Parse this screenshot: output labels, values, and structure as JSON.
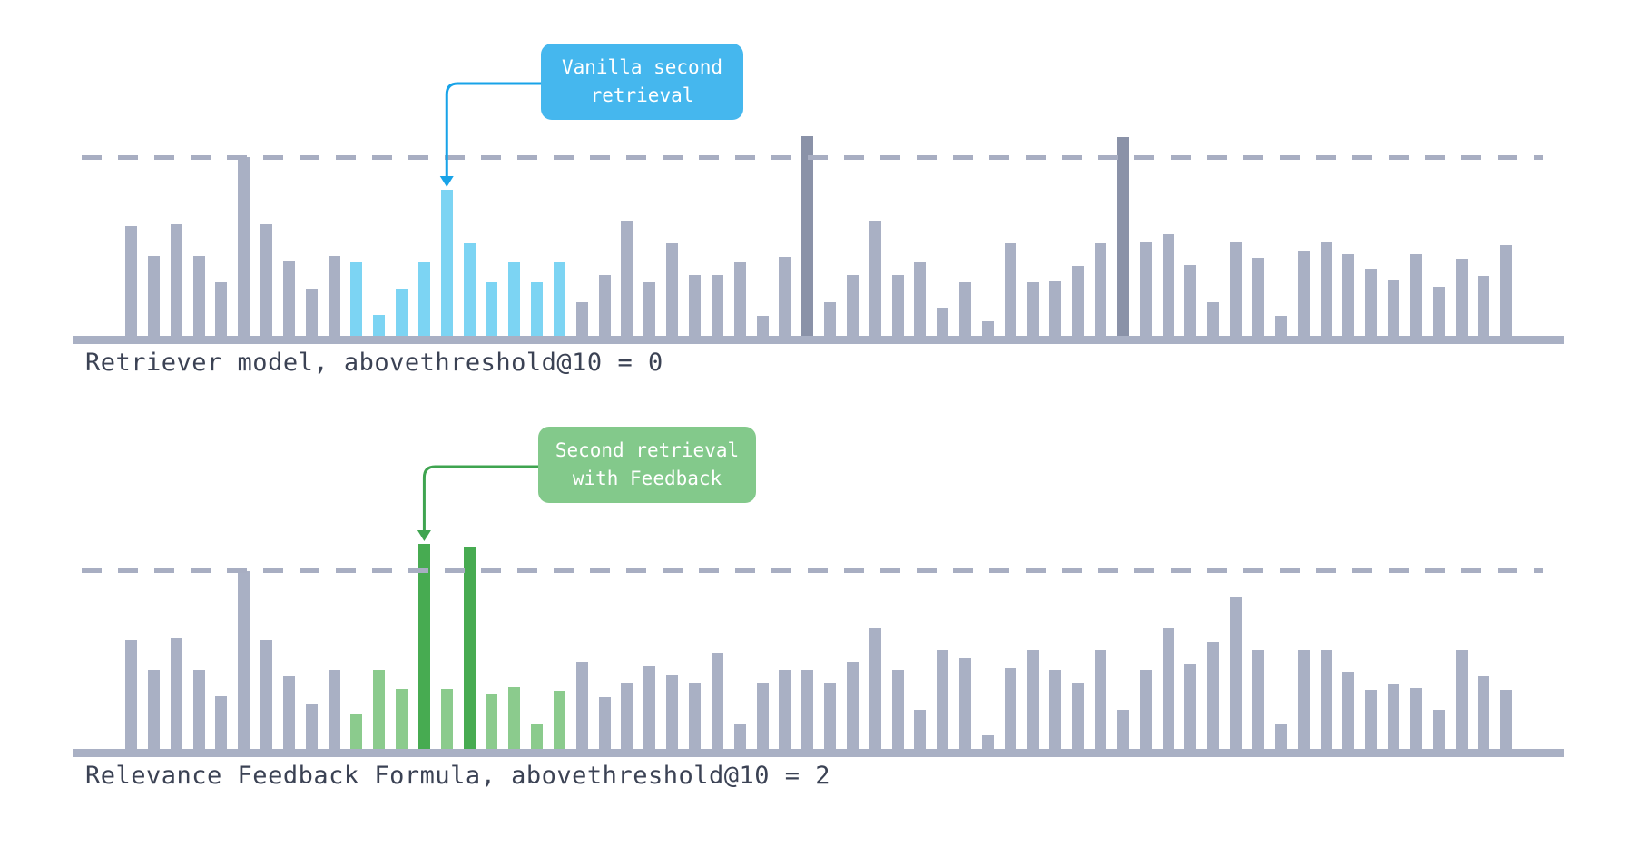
{
  "palette": {
    "background": "#ffffff",
    "bar_gray": "#a9b0c4",
    "bar_gray_dark": "#8a92a8",
    "bar_blue": "#7cd4f3",
    "bar_green": "#8bcb8d",
    "bar_green_dark": "#47ab51",
    "callout_blue": "#45b7ee",
    "callout_green": "#83c98b",
    "arrow_blue": "#18a3e8",
    "arrow_green": "#3fa450",
    "dash_line": "#a8aec2",
    "baseline": "#a9b0c4",
    "label_text": "#3b4254",
    "callout_text": "#ffffff"
  },
  "chart_data": [
    {
      "type": "bar",
      "label": "Retriever model, abovethreshold@10 = 0",
      "above_threshold_count": 0,
      "threshold": 195,
      "ylim": [
        0,
        240
      ],
      "grid": false,
      "values": [
        121,
        88,
        123,
        88,
        59,
        197,
        123,
        82,
        52,
        88,
        81,
        23,
        52,
        81,
        161,
        102,
        59,
        81,
        59,
        81,
        37,
        67,
        127,
        59,
        102,
        67,
        67,
        81,
        22,
        87,
        220,
        37,
        67,
        127,
        67,
        81,
        31,
        59,
        16,
        102,
        59,
        61,
        77,
        102,
        219,
        103,
        112,
        78,
        37,
        103,
        86,
        22,
        94,
        103,
        90,
        74,
        62,
        90,
        54,
        85,
        66,
        100
      ],
      "second_retrieval_indices": [
        10,
        11,
        12,
        13,
        14,
        15,
        16,
        17,
        18,
        19
      ],
      "second_retrieval_color_key": "bar_blue",
      "dark_indices": [
        30,
        44
      ],
      "dark_color_key": "bar_gray_dark",
      "callout": {
        "lines": [
          "Vanilla second",
          "retrieval"
        ],
        "target_index": 14,
        "box_color_key": "callout_blue",
        "arrow_color_key": "arrow_blue"
      }
    },
    {
      "type": "bar",
      "label": "Relevance Feedback Formula, abovethreshold@10 = 2",
      "above_threshold_count": 2,
      "threshold": 195,
      "ylim": [
        0,
        240
      ],
      "grid": false,
      "values": [
        120,
        87,
        122,
        87,
        58,
        196,
        120,
        80,
        50,
        87,
        38,
        87,
        66,
        226,
        66,
        222,
        61,
        68,
        28,
        64,
        96,
        57,
        73,
        91,
        82,
        73,
        106,
        28,
        73,
        87,
        87,
        73,
        96,
        133,
        87,
        43,
        109,
        100,
        15,
        89,
        109,
        87,
        73,
        109,
        43,
        87,
        133,
        94,
        118,
        167,
        109,
        28,
        109,
        109,
        85,
        65,
        71,
        67,
        43,
        109,
        80,
        65
      ],
      "second_retrieval_indices": [
        10,
        11,
        12,
        13,
        14,
        15,
        16,
        17,
        18,
        19
      ],
      "second_retrieval_color_key": "bar_green",
      "dark_indices": [
        13,
        15
      ],
      "dark_color_key": "bar_green_dark",
      "callout": {
        "lines": [
          "Second retrieval",
          "with Feedback"
        ],
        "target_index": 13,
        "box_color_key": "callout_green",
        "arrow_color_key": "arrow_green"
      }
    }
  ]
}
